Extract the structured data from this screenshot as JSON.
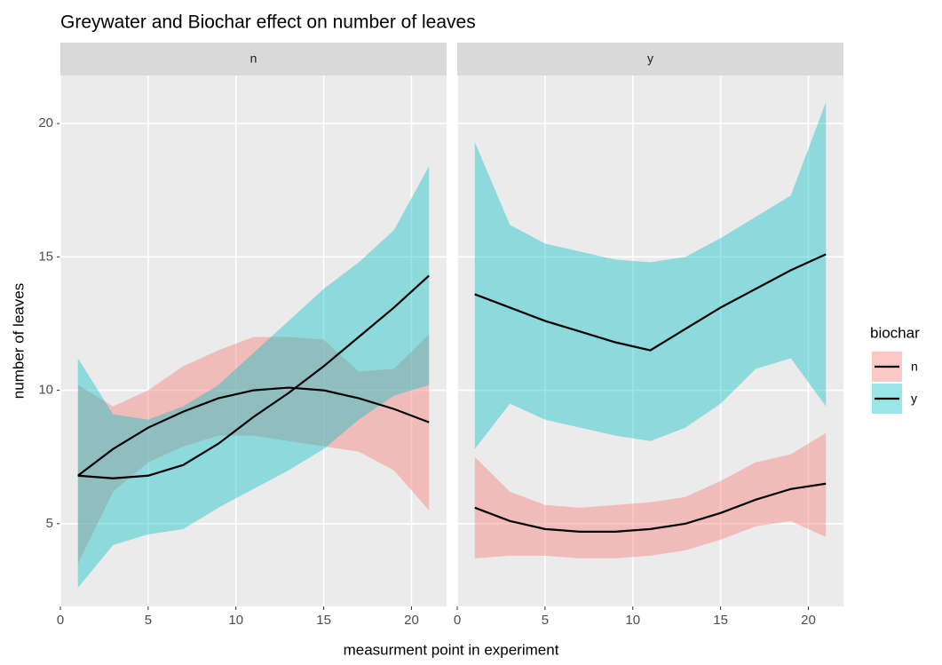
{
  "chart_data": {
    "type": "line",
    "title": "Greywater and Biochar effect on number of leaves",
    "x_label": "measurment point in experiment",
    "y_label": "number of leaves",
    "legend_title": "biochar",
    "xlim": [
      0,
      22
    ],
    "xticks": [
      0,
      5,
      10,
      15,
      20
    ],
    "ylim": [
      1.9,
      21.8
    ],
    "yticks": [
      5,
      10,
      15,
      20
    ],
    "grid": true,
    "line_color": "#000000",
    "x": [
      1,
      3,
      5,
      7,
      9,
      11,
      13,
      15,
      17,
      19,
      21
    ],
    "facets": [
      {
        "name": "n",
        "series": [
          {
            "name": "n",
            "color": "#f8766d",
            "values": [
              6.8,
              7.8,
              8.6,
              9.2,
              9.7,
              10.0,
              10.1,
              10.0,
              9.7,
              9.3,
              8.8
            ],
            "lower": [
              3.5,
              6.2,
              7.3,
              7.9,
              8.3,
              8.3,
              8.1,
              7.9,
              7.7,
              7.0,
              5.5
            ],
            "upper": [
              10.2,
              9.4,
              10.0,
              10.9,
              11.5,
              12.0,
              12.0,
              11.9,
              10.7,
              10.8,
              12.1
            ]
          },
          {
            "name": "y",
            "color": "#00bfc4",
            "values": [
              6.8,
              6.7,
              6.8,
              7.2,
              8.0,
              9.0,
              9.9,
              10.9,
              12.0,
              13.1,
              14.3
            ],
            "lower": [
              2.6,
              4.2,
              4.6,
              4.8,
              5.6,
              6.3,
              7.0,
              7.8,
              8.9,
              9.8,
              10.2
            ],
            "upper": [
              11.2,
              9.1,
              8.9,
              9.4,
              10.2,
              11.4,
              12.6,
              13.8,
              14.8,
              16.0,
              18.4
            ]
          }
        ]
      },
      {
        "name": "y",
        "series": [
          {
            "name": "n",
            "color": "#f8766d",
            "values": [
              5.6,
              5.1,
              4.8,
              4.7,
              4.7,
              4.8,
              5.0,
              5.4,
              5.9,
              6.3,
              6.5
            ],
            "lower": [
              3.7,
              3.8,
              3.8,
              3.7,
              3.7,
              3.8,
              4.0,
              4.4,
              4.9,
              5.1,
              4.5
            ],
            "upper": [
              7.5,
              6.2,
              5.7,
              5.6,
              5.7,
              5.8,
              6.0,
              6.6,
              7.3,
              7.6,
              8.4
            ]
          },
          {
            "name": "y",
            "color": "#00bfc4",
            "values": [
              13.6,
              13.1,
              12.6,
              12.2,
              11.8,
              11.5,
              12.3,
              13.1,
              13.8,
              14.5,
              15.1
            ],
            "lower": [
              7.8,
              9.5,
              8.9,
              8.6,
              8.3,
              8.1,
              8.6,
              9.5,
              10.8,
              11.2,
              9.4
            ],
            "upper": [
              19.3,
              16.2,
              15.5,
              15.2,
              14.9,
              14.8,
              15.0,
              15.7,
              16.5,
              17.3,
              20.8
            ]
          }
        ]
      }
    ]
  }
}
